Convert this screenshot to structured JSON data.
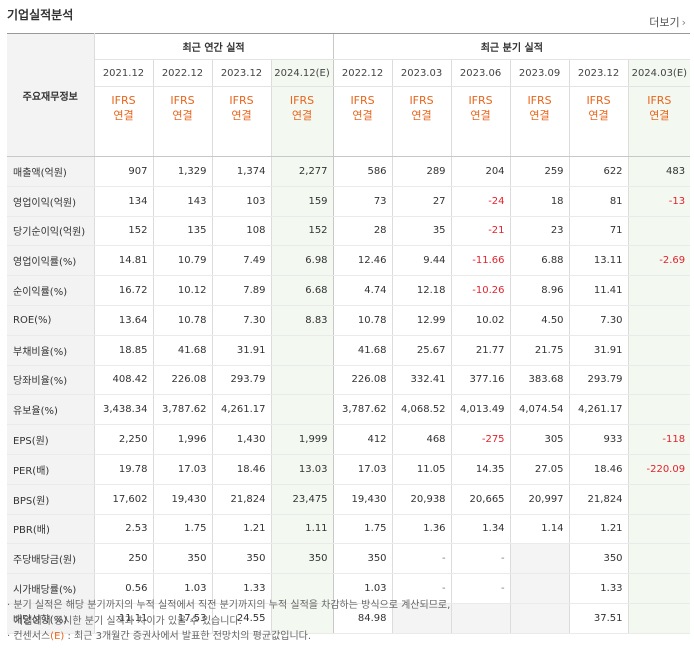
{
  "title": "기업실적분석",
  "more_label": "더보기",
  "more_arrow": "›",
  "row_header_label": "주요재무정보",
  "group_annual": "최근 연간 실적",
  "group_quarter": "최근 분기 실적",
  "periods": [
    "2021.12",
    "2022.12",
    "2023.12",
    "2024.12(E)",
    "2022.12",
    "2023.03",
    "2023.06",
    "2023.09",
    "2023.12",
    "2024.03(E)"
  ],
  "ifrs": {
    "line1": "IFRS",
    "line2": "연결"
  },
  "rows": [
    {
      "label": "매출액(억원)",
      "values": [
        "907",
        "1,329",
        "1,374",
        "2,277",
        "586",
        "289",
        "204",
        "259",
        "622",
        "483"
      ]
    },
    {
      "label": "영업이익(억원)",
      "values": [
        "134",
        "143",
        "103",
        "159",
        "73",
        "27",
        "-24",
        "18",
        "81",
        "-13"
      ]
    },
    {
      "label": "당기순이익(억원)",
      "values": [
        "152",
        "135",
        "108",
        "152",
        "28",
        "35",
        "-21",
        "23",
        "71",
        ""
      ]
    },
    {
      "label": "영업이익률(%)",
      "values": [
        "14.81",
        "10.79",
        "7.49",
        "6.98",
        "12.46",
        "9.44",
        "-11.66",
        "6.88",
        "13.11",
        "-2.69"
      ]
    },
    {
      "label": "순이익률(%)",
      "values": [
        "16.72",
        "10.12",
        "7.89",
        "6.68",
        "4.74",
        "12.18",
        "-10.26",
        "8.96",
        "11.41",
        ""
      ]
    },
    {
      "label": "ROE(%)",
      "values": [
        "13.64",
        "10.78",
        "7.30",
        "8.83",
        "10.78",
        "12.99",
        "10.02",
        "4.50",
        "7.30",
        ""
      ]
    },
    {
      "label": "부채비율(%)",
      "values": [
        "18.85",
        "41.68",
        "31.91",
        "",
        "41.68",
        "25.67",
        "21.77",
        "21.75",
        "31.91",
        ""
      ]
    },
    {
      "label": "당좌비율(%)",
      "values": [
        "408.42",
        "226.08",
        "293.79",
        "",
        "226.08",
        "332.41",
        "377.16",
        "383.68",
        "293.79",
        ""
      ]
    },
    {
      "label": "유보율(%)",
      "values": [
        "3,438.34",
        "3,787.62",
        "4,261.17",
        "",
        "3,787.62",
        "4,068.52",
        "4,013.49",
        "4,074.54",
        "4,261.17",
        ""
      ]
    },
    {
      "label": "EPS(원)",
      "values": [
        "2,250",
        "1,996",
        "1,430",
        "1,999",
        "412",
        "468",
        "-275",
        "305",
        "933",
        "-118"
      ]
    },
    {
      "label": "PER(배)",
      "values": [
        "19.78",
        "17.03",
        "18.46",
        "13.03",
        "17.03",
        "11.05",
        "14.35",
        "27.05",
        "18.46",
        "-220.09"
      ]
    },
    {
      "label": "BPS(원)",
      "values": [
        "17,602",
        "19,430",
        "21,824",
        "23,475",
        "19,430",
        "20,938",
        "20,665",
        "20,997",
        "21,824",
        ""
      ]
    },
    {
      "label": "PBR(배)",
      "values": [
        "2.53",
        "1.75",
        "1.21",
        "1.11",
        "1.75",
        "1.36",
        "1.34",
        "1.14",
        "1.21",
        ""
      ]
    },
    {
      "label": "주당배당금(원)",
      "values": [
        "250",
        "350",
        "350",
        "350",
        "350",
        "-",
        "-",
        "",
        "350",
        ""
      ]
    },
    {
      "label": "시가배당률(%)",
      "values": [
        "0.56",
        "1.03",
        "1.33",
        "",
        "1.03",
        "-",
        "-",
        "",
        "1.33",
        ""
      ]
    },
    {
      "label": "배당성향(%)",
      "values": [
        "11.11",
        "17.53",
        "24.55",
        "",
        "84.98",
        "",
        "",
        "",
        "37.51",
        ""
      ]
    }
  ],
  "notes": {
    "n1": "· 분기 실적은 해당 분기까지의 누적 실적에서 직전 분기까지의 누적 실적을 차감하는 방식으로 계산되므로,",
    "n2": "기업에서 공시한 분기 실적과 차이가 있을 수 있습니다.",
    "n3_prefix": "· 컨센서스",
    "n3_mark": "(E)",
    "n3_suffix": " : 최근 3개월간 증권사에서 발표한 전망치의 평균값입니다."
  }
}
